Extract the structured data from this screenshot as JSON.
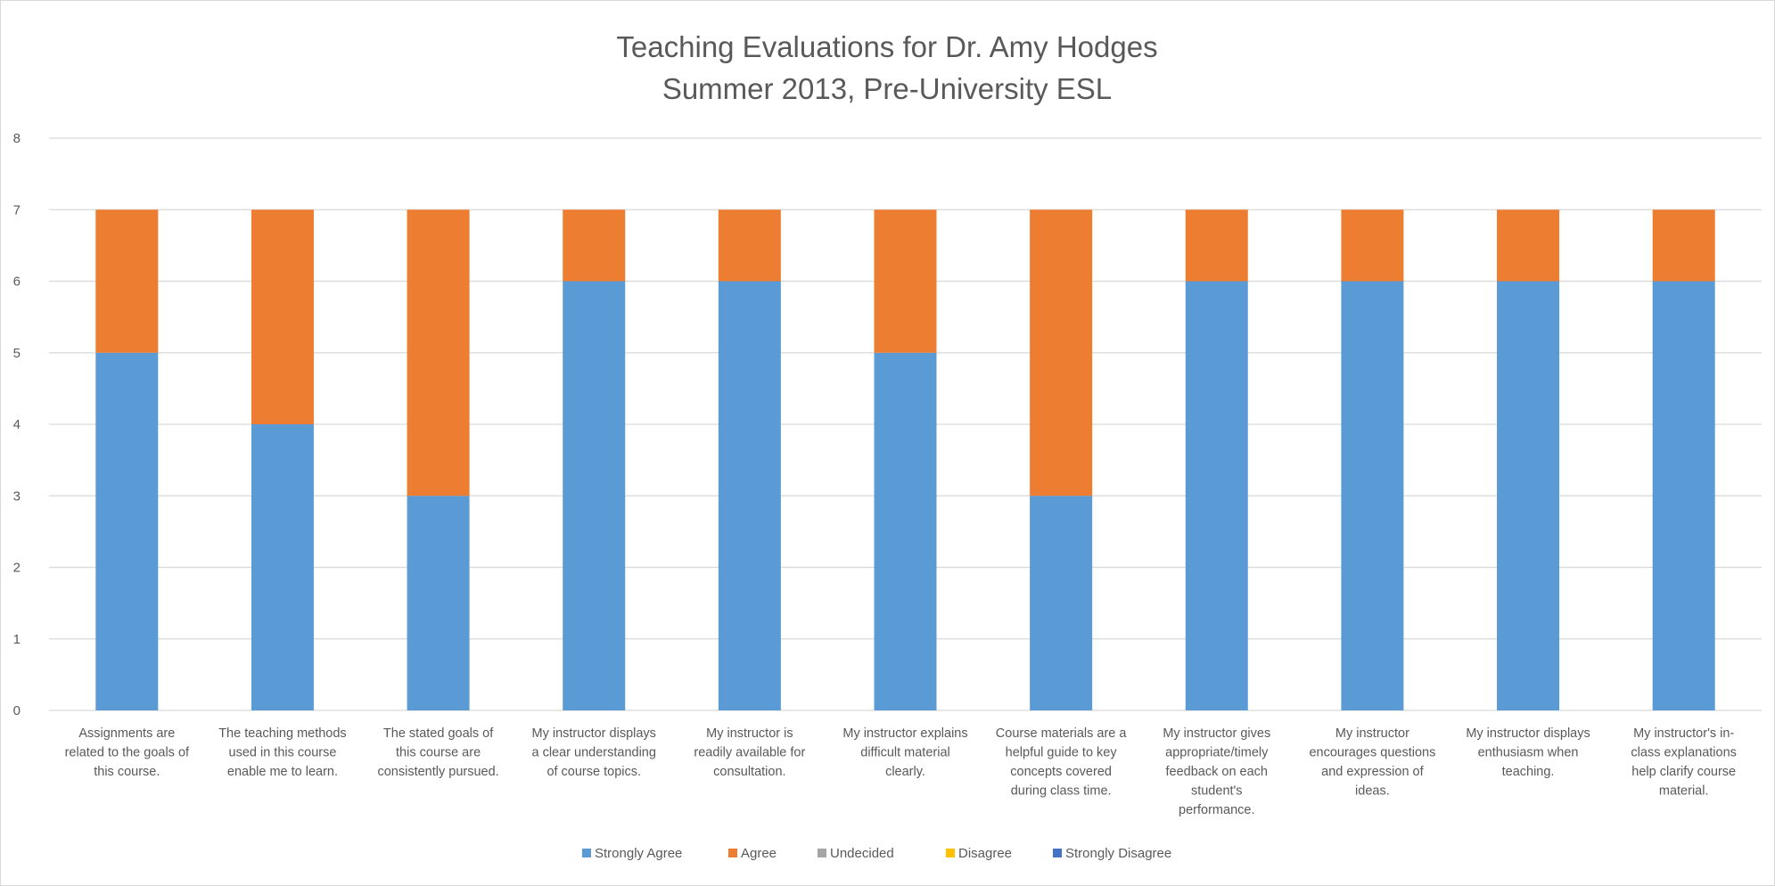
{
  "chart_data": {
    "type": "bar",
    "stacked": true,
    "title": [
      "Teaching Evaluations for Dr. Amy Hodges",
      "Summer 2013, Pre-University ESL"
    ],
    "xlabel": "",
    "ylabel": "",
    "ylim": [
      0,
      8
    ],
    "yticks": [
      0,
      1,
      2,
      3,
      4,
      5,
      6,
      7,
      8
    ],
    "grid": true,
    "legend_position": "bottom",
    "categories": [
      [
        "Assignments are",
        "related to the goals of",
        "this course."
      ],
      [
        "The teaching methods",
        "used in this course",
        "enable me to learn."
      ],
      [
        "The stated goals of",
        "this course are",
        "consistently pursued."
      ],
      [
        "My instructor displays",
        "a clear understanding",
        "of course topics."
      ],
      [
        "My instructor is",
        "readily available for",
        "consultation."
      ],
      [
        "My instructor explains",
        "difficult material",
        "clearly."
      ],
      [
        "Course materials are a",
        "helpful guide to key",
        "concepts covered",
        "during class time."
      ],
      [
        "My instructor gives",
        "appropriate/timely",
        "feedback on each",
        "student's",
        "performance."
      ],
      [
        "My instructor",
        "encourages questions",
        "and expression of",
        "ideas."
      ],
      [
        "My instructor displays",
        "enthusiasm when",
        "teaching."
      ],
      [
        "My instructor's in-",
        "class explanations",
        "help clarify course",
        "material."
      ]
    ],
    "series": [
      {
        "name": "Strongly Agree",
        "color": "#5b9bd5",
        "values": [
          5,
          4,
          3,
          6,
          6,
          5,
          3,
          6,
          6,
          6,
          6
        ]
      },
      {
        "name": "Agree",
        "color": "#ed7d31",
        "values": [
          2,
          3,
          4,
          1,
          1,
          2,
          4,
          1,
          1,
          1,
          1
        ]
      },
      {
        "name": "Undecided",
        "color": "#a5a5a5",
        "values": [
          0,
          0,
          0,
          0,
          0,
          0,
          0,
          0,
          0,
          0,
          0
        ]
      },
      {
        "name": "Disagree",
        "color": "#ffc000",
        "values": [
          0,
          0,
          0,
          0,
          0,
          0,
          0,
          0,
          0,
          0,
          0
        ]
      },
      {
        "name": "Strongly Disagree",
        "color": "#4472c4",
        "values": [
          0,
          0,
          0,
          0,
          0,
          0,
          0,
          0,
          0,
          0,
          0
        ]
      }
    ]
  }
}
